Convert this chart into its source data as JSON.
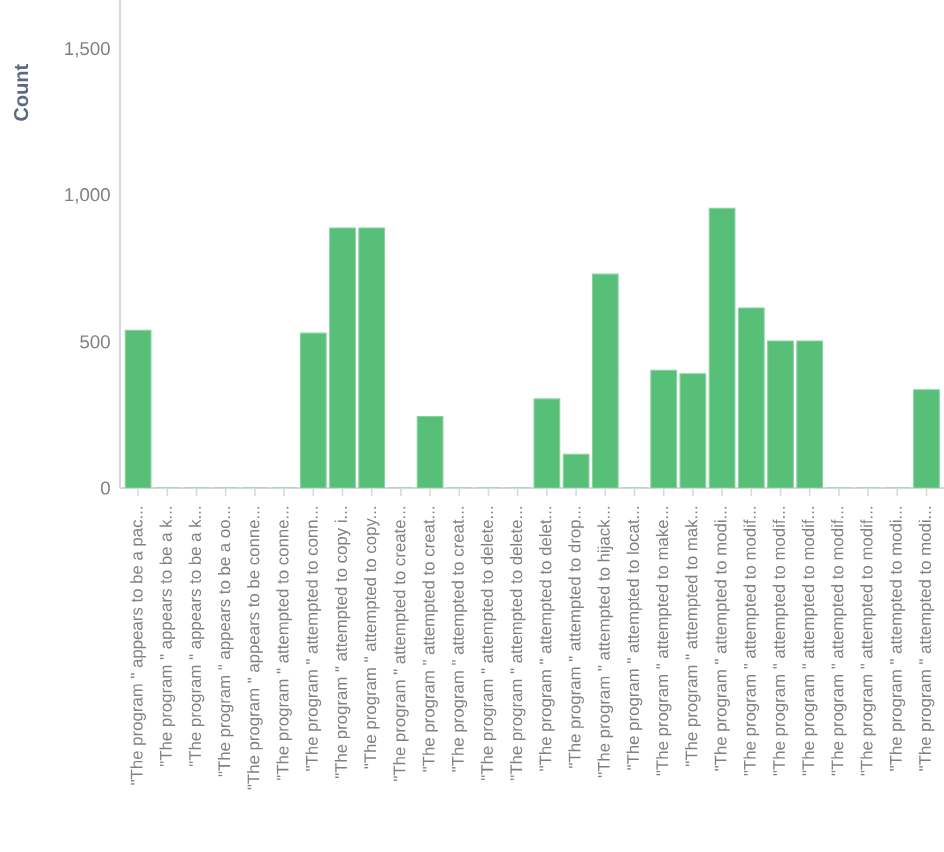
{
  "chart_data": {
    "type": "bar",
    "ylabel": "Count",
    "color": "#57bf78",
    "categories": [
      "\"The program \" appears to be a pac...",
      "\"The program \" appears to be a k...",
      "\"The program \" appears to be a k...",
      "\"The program \" appears to be a oo...",
      "\"The program \" appears to be conne...",
      "\"The program \" attempted to conne...",
      "\"The program \" attempted to conn...",
      "\"The program \" attempted to copy i...",
      "\"The program \" attempted to copy...",
      "\"The program \" attempted to create...",
      "\"The program \" attempted to creat...",
      "\"The program \" attempted to creat...",
      "\"The program \" attempted to delete...",
      "\"The program \" attempted to delete...",
      "\"The program \" attempted to delet...",
      "\"The program \" attempted to drop...",
      "\"The program \" attempted to hijack...",
      "\"The program \" attempted to locat...",
      "\"The program \" attempted to make...",
      "\"The program \" attempted to mak...",
      "\"The program \" attempted to modi...",
      "\"The program \" attempted to modif...",
      "\"The program \" attempted to modif...",
      "\"The program \" attempted to modif...",
      "\"The program \" attempted to modif...",
      "\"The program \" attempted to modif...",
      "\"The program \" attempted to modi...",
      "\"The program \" attempted to modi..."
    ],
    "values": [
      540,
      0,
      0,
      0,
      0,
      0,
      530,
      890,
      890,
      0,
      245,
      0,
      0,
      0,
      305,
      115,
      732,
      0,
      403,
      391,
      957,
      616,
      503,
      503,
      0,
      0,
      0,
      336
    ],
    "ylim": [
      0,
      1670
    ],
    "yticks": [
      0,
      500,
      {
        "value": 1000,
        "label": "1,000"
      },
      {
        "value": 1500,
        "label": "1,500"
      }
    ]
  }
}
